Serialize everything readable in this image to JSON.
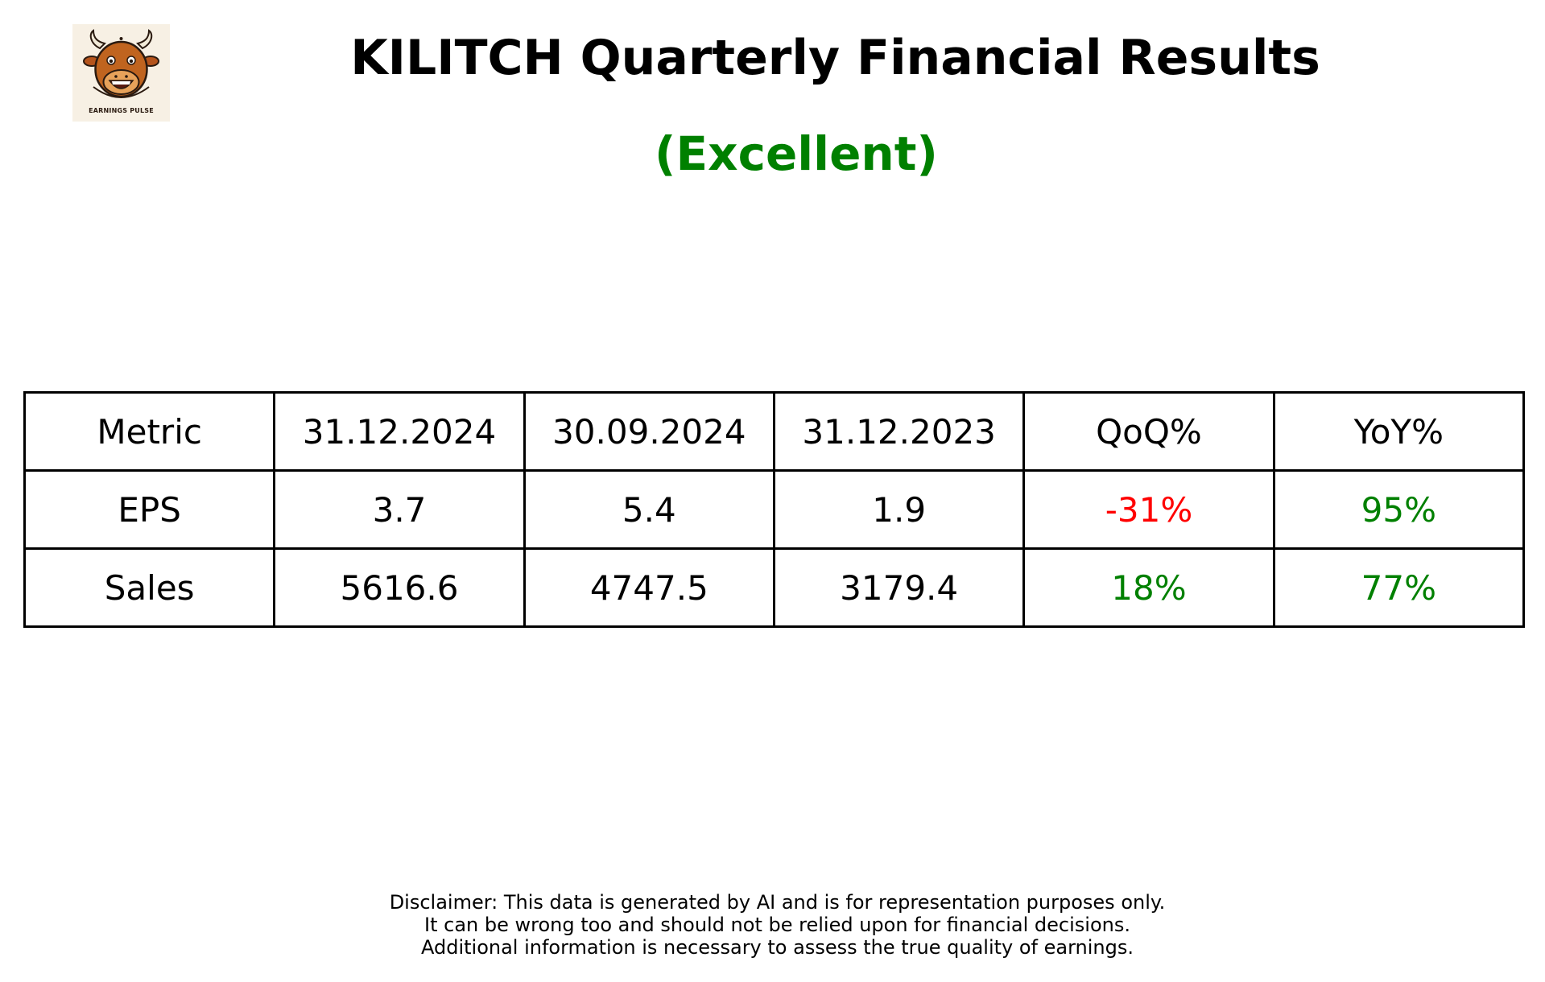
{
  "logo": {
    "icon": "bull-mascot-icon",
    "text": "EARNINGS PULSE"
  },
  "title": "KILITCH Quarterly Financial Results",
  "rating": {
    "label": "(Excellent)",
    "color": "#008000"
  },
  "table": {
    "headers": [
      "Metric",
      "31.12.2024",
      "30.09.2024",
      "31.12.2023",
      "QoQ%",
      "YoY%"
    ],
    "rows": [
      {
        "metric": "EPS",
        "q1": "3.7",
        "q2": "5.4",
        "q3": "1.9",
        "qoq": "-31%",
        "qoq_color": "#ff0000",
        "yoy": "95%",
        "yoy_color": "#008000"
      },
      {
        "metric": "Sales",
        "q1": "5616.6",
        "q2": "4747.5",
        "q3": "3179.4",
        "qoq": "18%",
        "qoq_color": "#008000",
        "yoy": "77%",
        "yoy_color": "#008000"
      }
    ]
  },
  "disclaimer": [
    "Disclaimer: This data is generated by AI and is for representation purposes only.",
    "It can be wrong too and should not be relied upon for financial decisions.",
    "Additional information is necessary to assess the true quality of earnings."
  ]
}
